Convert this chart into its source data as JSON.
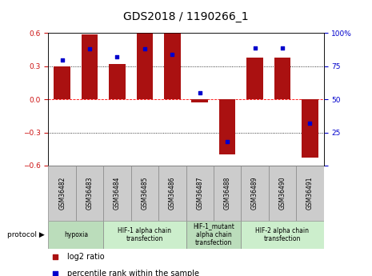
{
  "title": "GDS2018 / 1190266_1",
  "samples": [
    "GSM36482",
    "GSM36483",
    "GSM36484",
    "GSM36485",
    "GSM36486",
    "GSM36487",
    "GSM36488",
    "GSM36489",
    "GSM36490",
    "GSM36491"
  ],
  "log2_ratio": [
    0.3,
    0.59,
    0.32,
    0.6,
    0.6,
    -0.03,
    -0.5,
    0.38,
    0.38,
    -0.53
  ],
  "percentile_rank": [
    80,
    88,
    82,
    88,
    84,
    55,
    18,
    89,
    89,
    32
  ],
  "ylim_left": [
    -0.6,
    0.6
  ],
  "ylim_right": [
    0,
    100
  ],
  "bar_color": "#aa1111",
  "dot_color": "#0000cc",
  "protocol_groups": [
    {
      "label": "hypoxia",
      "start": 0,
      "end": 1,
      "color": "#bbddbb"
    },
    {
      "label": "HIF-1 alpha chain\ntransfection",
      "start": 2,
      "end": 4,
      "color": "#cceecc"
    },
    {
      "label": "HIF-1_mutant\nalpha chain\ntransfection",
      "start": 5,
      "end": 6,
      "color": "#bbddbb"
    },
    {
      "label": "HIF-2 alpha chain\ntransfection",
      "start": 7,
      "end": 9,
      "color": "#cceecc"
    }
  ],
  "sample_box_color": "#cccccc",
  "sample_box_edge": "#888888",
  "left_tick_color": "#cc1111",
  "right_tick_color": "#0000cc",
  "title_fontsize": 10,
  "tick_fontsize": 6.5,
  "sample_fontsize": 5.5,
  "proto_fontsize": 5.5,
  "legend_fontsize": 7,
  "background_color": "#ffffff"
}
